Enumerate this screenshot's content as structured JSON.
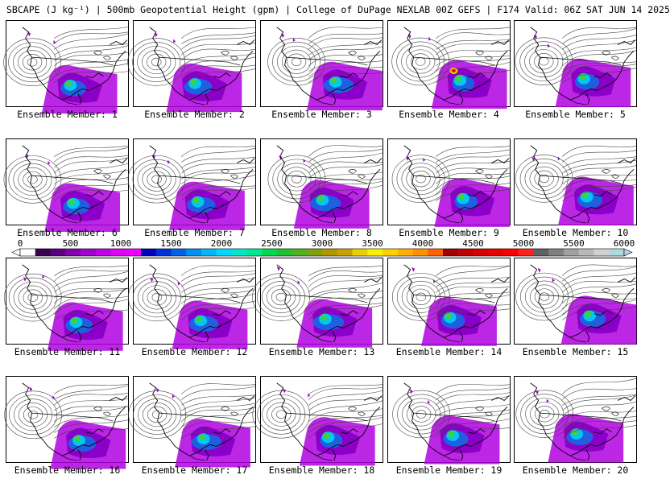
{
  "title": "SBCAPE (J kg⁻¹) | 500mb Geopotential Height (gpm) | College of DuPage NEXLAB 00Z GEFS | F174 Valid: 06Z SAT JUN 14 2025",
  "colorbar": {
    "tick_labels": [
      "0",
      "500",
      "1000",
      "1500",
      "2000",
      "2500",
      "3000",
      "3500",
      "4000",
      "4500",
      "5000",
      "5500",
      "6000"
    ],
    "colors": [
      "#ffffff",
      "#3a0050",
      "#5a0080",
      "#8000b0",
      "#a000d0",
      "#c000e8",
      "#e000f8",
      "#f000ff",
      "#0000c0",
      "#0030d8",
      "#0060e8",
      "#0090f0",
      "#00b8f8",
      "#00d8ff",
      "#00e8c8",
      "#00e890",
      "#00d850",
      "#20c030",
      "#50b020",
      "#80a010",
      "#b09800",
      "#c8a000",
      "#e8d000",
      "#f8f000",
      "#ffd000",
      "#ffb000",
      "#ff9000",
      "#ff6000",
      "#a00000",
      "#c00000",
      "#d80000",
      "#e80000",
      "#ff0000",
      "#ff2020",
      "#606060",
      "#808080",
      "#a0a0a0",
      "#b8b8b8",
      "#d0d0d0",
      "#b0d8e0"
    ]
  },
  "members": [
    {
      "label": "Ensemble Member: 1"
    },
    {
      "label": "Ensemble Member: 2"
    },
    {
      "label": "Ensemble Member: 3"
    },
    {
      "label": "Ensemble Member: 4"
    },
    {
      "label": "Ensemble Member: 5"
    },
    {
      "label": "Ensemble Member: 6"
    },
    {
      "label": "Ensemble Member: 7"
    },
    {
      "label": "Ensemble Member: 8"
    },
    {
      "label": "Ensemble Member: 9"
    },
    {
      "label": "Ensemble Member: 10"
    },
    {
      "label": "Ensemble Member: 11"
    },
    {
      "label": "Ensemble Member: 12"
    },
    {
      "label": "Ensemble Member: 13"
    },
    {
      "label": "Ensemble Member: 14"
    },
    {
      "label": "Ensemble Member: 15"
    },
    {
      "label": "Ensemble Member: 16"
    },
    {
      "label": "Ensemble Member: 17"
    },
    {
      "label": "Ensemble Member: 18"
    },
    {
      "label": "Ensemble Member: 19"
    },
    {
      "label": "Ensemble Member: 20"
    }
  ]
}
